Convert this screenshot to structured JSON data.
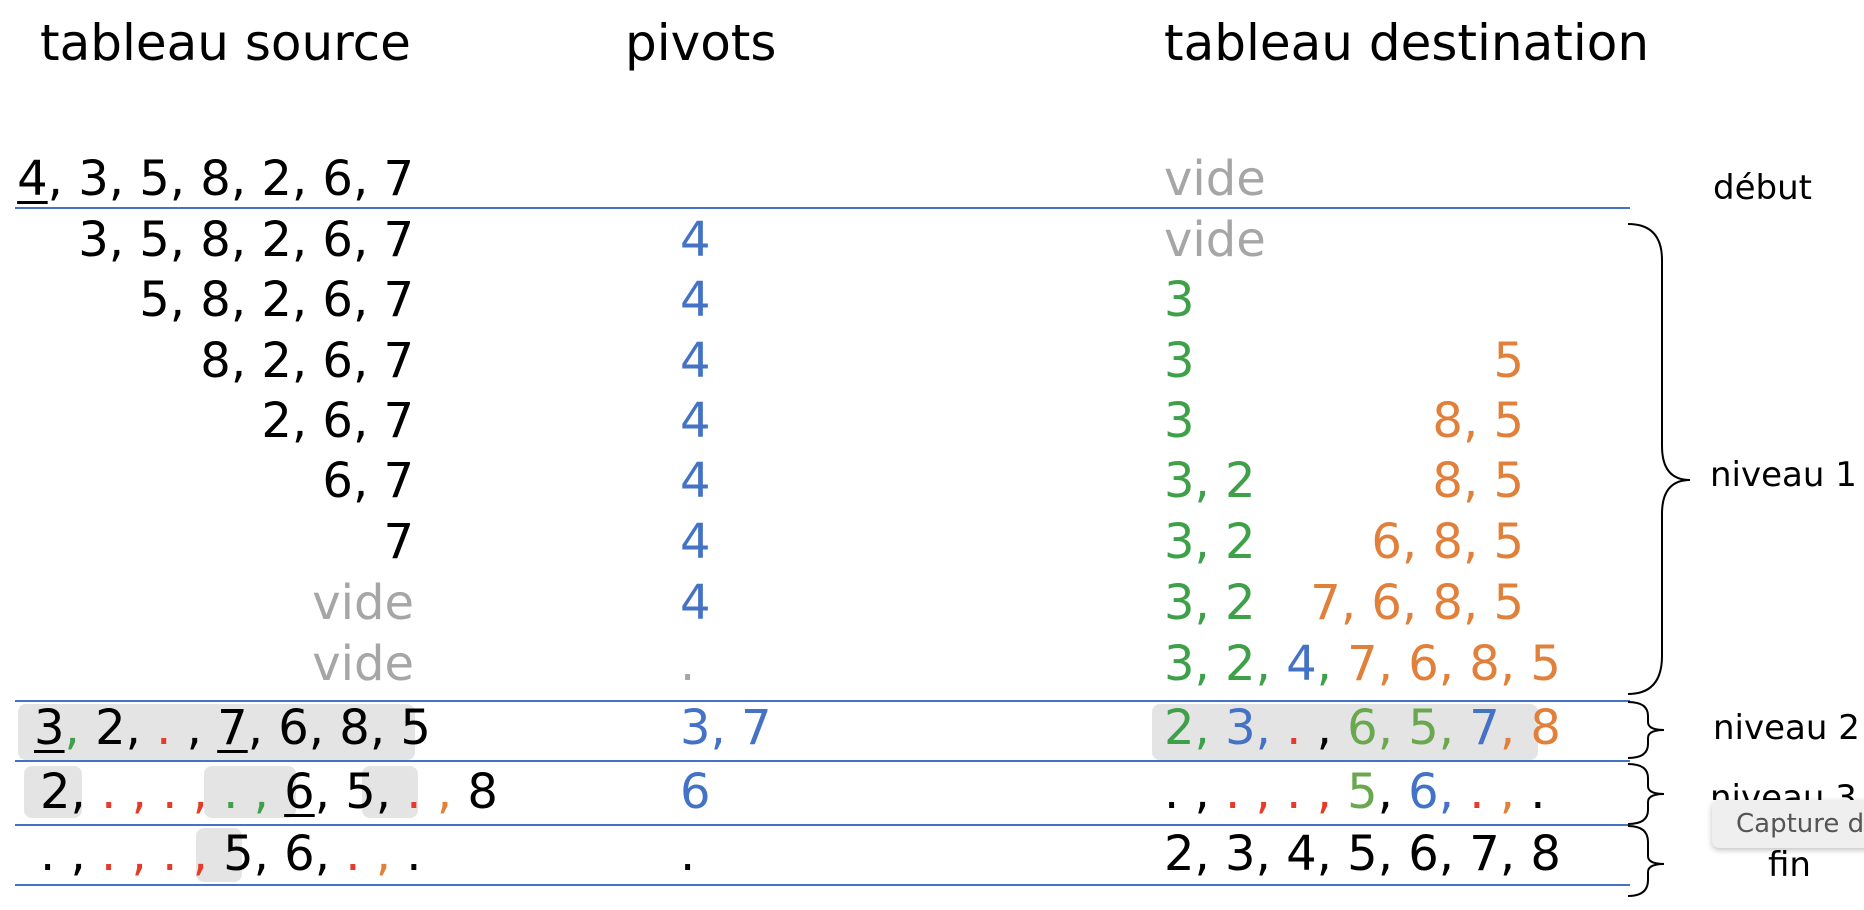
{
  "headers": {
    "source": "tableau source",
    "pivots": "pivots",
    "destination": "tableau destination"
  },
  "labels": {
    "debut": "début",
    "niveau1": "niveau 1",
    "niveau2": "niveau 2",
    "niveau3": "niveau 3",
    "fin": "fin"
  },
  "tooltip": "Capture d",
  "colors": {
    "line": "#4472c4",
    "pivot_blue": "#4472c4",
    "green": "#3fa04a",
    "light_green": "#6aa84f",
    "orange": "#e0803a",
    "red": "#e53b2a",
    "gray": "#a6a6a6",
    "highlight": "#e4e4e4"
  },
  "rows": [
    {
      "source": [
        {
          "t": "4",
          "c": "k",
          "u": true
        },
        {
          "t": ", 3, 5, 8, 2, 6, 7",
          "c": "k"
        }
      ],
      "pivots": [],
      "destination": [
        {
          "t": "vide",
          "c": "gray"
        }
      ]
    },
    {
      "source": [
        {
          "t": "3, 5, 8, 2, 6, 7",
          "c": "k"
        }
      ],
      "pivots": [
        {
          "t": "4",
          "c": "b"
        }
      ],
      "destination": [
        {
          "t": "vide",
          "c": "gray"
        }
      ]
    },
    {
      "source": [
        {
          "t": "5, 8, 2, 6, 7",
          "c": "k"
        }
      ],
      "pivots": [
        {
          "t": "4",
          "c": "b"
        }
      ],
      "destination": [
        {
          "t": "3",
          "c": "g"
        }
      ]
    },
    {
      "source": [
        {
          "t": "8, 2, 6, 7",
          "c": "k"
        }
      ],
      "pivots": [
        {
          "t": "4",
          "c": "b"
        }
      ],
      "destination": [
        {
          "t": "3",
          "c": "g"
        }
      ],
      "destination_right": [
        {
          "t": "5",
          "c": "o"
        }
      ]
    },
    {
      "source": [
        {
          "t": "2, 6, 7",
          "c": "k"
        }
      ],
      "pivots": [
        {
          "t": "4",
          "c": "b"
        }
      ],
      "destination": [
        {
          "t": "3",
          "c": "g"
        }
      ],
      "destination_right": [
        {
          "t": "8, 5",
          "c": "o"
        }
      ]
    },
    {
      "source": [
        {
          "t": "6, 7",
          "c": "k"
        }
      ],
      "pivots": [
        {
          "t": "4",
          "c": "b"
        }
      ],
      "destination": [
        {
          "t": "3, 2",
          "c": "g"
        }
      ],
      "destination_right": [
        {
          "t": "8, 5",
          "c": "o"
        }
      ]
    },
    {
      "source": [
        {
          "t": "7",
          "c": "k"
        }
      ],
      "pivots": [
        {
          "t": "4",
          "c": "b"
        }
      ],
      "destination": [
        {
          "t": "3, 2",
          "c": "g"
        }
      ],
      "destination_right": [
        {
          "t": "6, 8, 5",
          "c": "o"
        }
      ]
    },
    {
      "source": [
        {
          "t": "vide",
          "c": "gray"
        }
      ],
      "pivots": [
        {
          "t": "4",
          "c": "b"
        }
      ],
      "destination": [
        {
          "t": "3, 2",
          "c": "g"
        }
      ],
      "destination_right": [
        {
          "t": "7, 6, 8, 5",
          "c": "o"
        }
      ]
    },
    {
      "source": [
        {
          "t": "vide",
          "c": "gray"
        }
      ],
      "pivots": [
        {
          "t": ".",
          "c": "gray"
        }
      ],
      "destination": [
        {
          "t": "3, 2",
          "c": "g"
        },
        {
          "t": ", ",
          "c": "g"
        },
        {
          "t": "4",
          "c": "b"
        },
        {
          "t": ", ",
          "c": "g"
        },
        {
          "t": "7, 6, 8, 5",
          "c": "o"
        }
      ]
    },
    {
      "source": [
        {
          "t": "3",
          "c": "k",
          "u": true
        },
        {
          "t": ",",
          "c": "g"
        },
        {
          "t": " 2, ",
          "c": "k"
        },
        {
          "t": ".",
          "c": "r"
        },
        {
          "t": " , ",
          "c": "k"
        },
        {
          "t": "7",
          "c": "k",
          "u": true
        },
        {
          "t": ", 6, 8, 5",
          "c": "k"
        }
      ],
      "pivots": [
        {
          "t": "3, 7",
          "c": "b"
        }
      ],
      "destination": [
        {
          "t": "2, ",
          "c": "g"
        },
        {
          "t": "3",
          "c": "b"
        },
        {
          "t": ", ",
          "c": "b"
        },
        {
          "t": ".",
          "c": "r"
        },
        {
          "t": " , ",
          "c": "k"
        },
        {
          "t": "6, 5, ",
          "c": "lg"
        },
        {
          "t": "7",
          "c": "b"
        },
        {
          "t": ", ",
          "c": "o"
        },
        {
          "t": "8",
          "c": "o"
        }
      ]
    },
    {
      "source": [
        {
          "t": "2, ",
          "c": "k"
        },
        {
          "t": ". , . ,",
          "c": "r"
        },
        {
          "t": " . ,",
          "c": "g"
        },
        {
          "t": " ",
          "c": "k"
        },
        {
          "t": "6",
          "c": "k",
          "u": true
        },
        {
          "t": ", 5, ",
          "c": "k"
        },
        {
          "t": ".",
          "c": "r"
        },
        {
          "t": " , ",
          "c": "o"
        },
        {
          "t": "8",
          "c": "k"
        }
      ],
      "pivots": [
        {
          "t": "6",
          "c": "b"
        }
      ],
      "destination": [
        {
          "t": ". , ",
          "c": "k"
        },
        {
          "t": ". , . ,",
          "c": "r"
        },
        {
          "t": " ",
          "c": "k"
        },
        {
          "t": "5",
          "c": "lg"
        },
        {
          "t": ", ",
          "c": "k"
        },
        {
          "t": "6",
          "c": "b"
        },
        {
          "t": ",  ",
          "c": "b"
        },
        {
          "t": ".",
          "c": "r"
        },
        {
          "t": " , ",
          "c": "o"
        },
        {
          "t": ".",
          "c": "k"
        }
      ]
    },
    {
      "source": [
        {
          "t": ". , ",
          "c": "k"
        },
        {
          "t": ". , . ,",
          "c": "r"
        },
        {
          "t": " ",
          "c": "k"
        },
        {
          "t": "5",
          "c": "k"
        },
        {
          "t": ", 6, ",
          "c": "k"
        },
        {
          "t": ".",
          "c": "r"
        },
        {
          "t": " , ",
          "c": "o"
        },
        {
          "t": ".",
          "c": "k"
        }
      ],
      "pivots": [
        {
          "t": ".",
          "c": "k"
        }
      ],
      "destination": [
        {
          "t": "2, 3, 4, 5, 6, 7, 8",
          "c": "k"
        }
      ]
    }
  ]
}
